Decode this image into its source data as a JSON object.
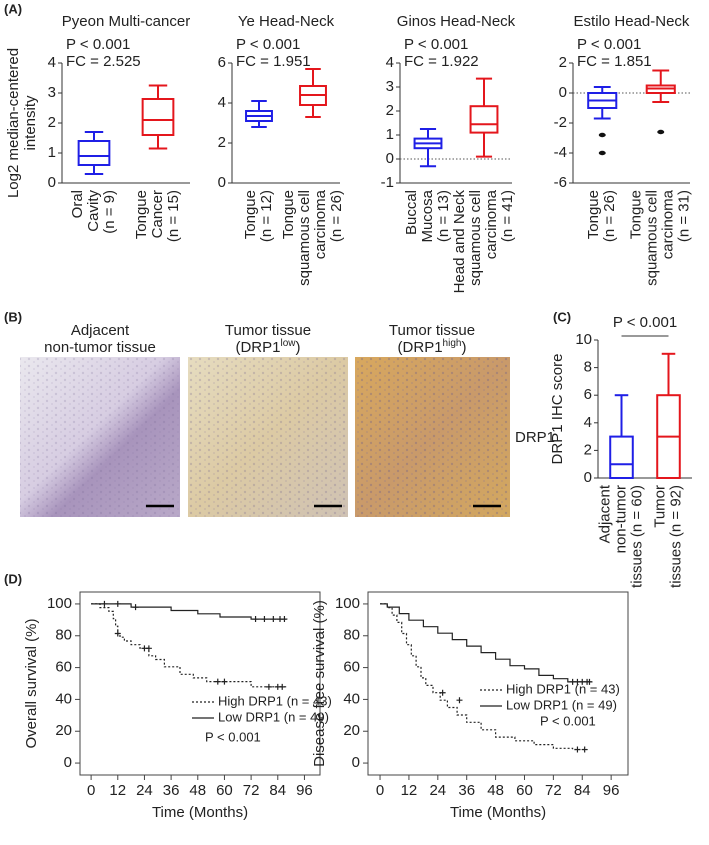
{
  "panel_labels": [
    "(A)",
    "(B)",
    "(C)",
    "(D)"
  ],
  "ihc": {
    "captions": [
      [
        "Adjacent",
        "non-tumor tissue"
      ],
      [
        "Tumor tissue",
        "(DRP1",
        "low",
        ")"
      ],
      [
        "Tumor tissue",
        "(DRP1",
        "high",
        ")"
      ]
    ],
    "marker": "DRP1"
  },
  "chart_data": [
    {
      "type": "box",
      "title": "Pyeon Multi-cancer",
      "annotations": [
        "P < 0.001",
        "FC = 2.525"
      ],
      "ylabel": [
        "Log2 median-centered",
        "intensity"
      ],
      "categories": [
        [
          "Oral",
          "Cavity",
          "(n = 9)"
        ],
        [
          "Tongue",
          "Cancer",
          "(n = 15)"
        ]
      ],
      "colors": [
        "#1f1fe6",
        "#e4161c"
      ],
      "boxes": [
        {
          "min": 0.3,
          "q1": 0.6,
          "median": 0.9,
          "q3": 1.4,
          "max": 1.7,
          "outliers": []
        },
        {
          "min": 1.15,
          "q1": 1.6,
          "median": 2.1,
          "q3": 2.8,
          "max": 3.25,
          "outliers": []
        }
      ],
      "ylim": [
        0,
        4
      ],
      "yticks": [
        0,
        1,
        2,
        3,
        4
      ]
    },
    {
      "type": "box",
      "title": "Ye Head-Neck",
      "annotations": [
        "P < 0.001",
        "FC = 1.951"
      ],
      "categories": [
        [
          "Tongue",
          "(n = 12)"
        ],
        [
          "Tongue",
          "squamous cell",
          "carcinoma",
          "(n = 26)"
        ]
      ],
      "colors": [
        "#1f1fe6",
        "#e4161c"
      ],
      "boxes": [
        {
          "min": 2.8,
          "q1": 3.1,
          "median": 3.35,
          "q3": 3.6,
          "max": 4.1,
          "outliers": []
        },
        {
          "min": 3.3,
          "q1": 3.9,
          "median": 4.4,
          "q3": 4.85,
          "max": 5.7,
          "outliers": []
        }
      ],
      "ylim": [
        0,
        6
      ],
      "yticks": [
        0,
        2,
        4,
        6
      ]
    },
    {
      "type": "box",
      "title": "Ginos Head-Neck",
      "annotations": [
        "P < 0.001",
        "FC = 1.922"
      ],
      "categories": [
        [
          "Buccal",
          "Mucosa",
          "(n = 13)"
        ],
        [
          "Head and Neck",
          "squamous cell",
          "carcinoma",
          "(n = 41)"
        ]
      ],
      "colors": [
        "#1f1fe6",
        "#e4161c"
      ],
      "boxes": [
        {
          "min": -0.3,
          "q1": 0.45,
          "median": 0.65,
          "q3": 0.85,
          "max": 1.25,
          "outliers": []
        },
        {
          "min": 0.1,
          "q1": 1.1,
          "median": 1.45,
          "q3": 2.2,
          "max": 3.35,
          "outliers": []
        }
      ],
      "reference_line": 0,
      "ylim": [
        -1,
        4
      ],
      "yticks": [
        -1,
        0,
        1,
        2,
        3,
        4
      ]
    },
    {
      "type": "box",
      "title": "Estilo Head-Neck",
      "annotations": [
        "P < 0.001",
        "FC = 1.851"
      ],
      "categories": [
        [
          "Tongue",
          "(n = 26)"
        ],
        [
          "Tongue",
          "squamous cell",
          "carcinoma",
          "(n = 31)"
        ]
      ],
      "colors": [
        "#1f1fe6",
        "#e4161c"
      ],
      "boxes": [
        {
          "min": -1.7,
          "q1": -1.0,
          "median": -0.5,
          "q3": 0.0,
          "max": 0.4,
          "outliers": [
            -2.8,
            -4.0
          ]
        },
        {
          "min": -0.6,
          "q1": 0.0,
          "median": 0.3,
          "q3": 0.5,
          "max": 1.5,
          "outliers": [
            -2.6
          ]
        }
      ],
      "reference_line": 0,
      "ylim": [
        -6,
        2
      ],
      "yticks": [
        -6,
        -4,
        -2,
        0,
        2
      ]
    },
    {
      "type": "box",
      "annotations": [
        "P < 0.001"
      ],
      "ylabel": [
        "DRP1 IHC score"
      ],
      "categories": [
        [
          "Adjacent",
          "non-tumor",
          "tissues (n = 60)"
        ],
        [
          "Tumor",
          "tissues (n = 92)"
        ]
      ],
      "colors": [
        "#1f1fe6",
        "#e4161c"
      ],
      "boxes": [
        {
          "min": 0,
          "q1": 0,
          "median": 1,
          "q3": 3,
          "max": 6,
          "outliers": []
        },
        {
          "min": 0,
          "q1": 0,
          "median": 3,
          "q3": 6,
          "max": 9,
          "outliers": []
        }
      ],
      "ylim": [
        0,
        10
      ],
      "yticks": [
        0,
        2,
        4,
        6,
        8,
        10
      ]
    },
    {
      "type": "km",
      "ylabel": "Overall survival (%)",
      "xlabel": "Time (Months)",
      "annotations": [
        "P < 0.001"
      ],
      "xlim": [
        -5,
        103
      ],
      "ylim": [
        -7.5,
        107.5
      ],
      "xticks": [
        0,
        12,
        24,
        36,
        48,
        60,
        72,
        84,
        96
      ],
      "yticks": [
        0,
        20,
        40,
        60,
        80,
        100
      ],
      "series": [
        {
          "name": "High DRP1 (n = 43)",
          "color": "#222222",
          "dash": "dotted",
          "x": [
            0,
            4,
            4,
            8,
            8,
            10,
            10,
            11,
            11,
            12,
            12,
            13,
            13,
            15,
            15,
            18,
            18,
            22,
            22,
            26,
            26,
            29,
            29,
            33,
            33,
            40,
            40,
            46,
            46,
            52,
            52,
            72,
            72,
            88
          ],
          "values": [
            100,
            100,
            97.7,
            97.7,
            95.3,
            95.3,
            90.7,
            90.7,
            86,
            86,
            81.4,
            81.4,
            79.1,
            79.1,
            76.7,
            76.7,
            74.4,
            74.4,
            72.1,
            72.1,
            67.4,
            67.4,
            65.1,
            65.1,
            60.5,
            60.5,
            55.8,
            55.8,
            53.5,
            53.5,
            51.2,
            51.2,
            47.9,
            47.9
          ],
          "censored_x": [
            12,
            24,
            26,
            57,
            60,
            80,
            84,
            86
          ],
          "censored_y": [
            81.4,
            72.1,
            72.1,
            51.2,
            51.2,
            47.9,
            47.9,
            47.9
          ]
        },
        {
          "name": "Low DRP1 (n = 49)",
          "color": "#222222",
          "dash": "solid",
          "x": [
            0,
            18,
            18,
            36,
            36,
            48,
            48,
            58,
            58,
            72,
            72,
            88
          ],
          "values": [
            100,
            100,
            98,
            98,
            95.9,
            95.9,
            93.8,
            93.8,
            91.8,
            91.8,
            90.5,
            90.5
          ],
          "censored_x": [
            6,
            12,
            20,
            74,
            78,
            82,
            85,
            87
          ],
          "censored_y": [
            100,
            100,
            98,
            90.5,
            90.5,
            90.5,
            90.5,
            90.5
          ]
        }
      ]
    },
    {
      "type": "km",
      "ylabel": "Disease free survival (%)",
      "xlabel": "Time (Months)",
      "annotations": [
        "P < 0.001"
      ],
      "xlim": [
        -5,
        103
      ],
      "ylim": [
        -7.5,
        107.5
      ],
      "xticks": [
        0,
        12,
        24,
        36,
        48,
        60,
        72,
        84,
        96
      ],
      "yticks": [
        0,
        20,
        40,
        60,
        80,
        100
      ],
      "series": [
        {
          "name": "High DRP1 (n = 43)",
          "color": "#222222",
          "dash": "dotted",
          "x": [
            0,
            3,
            3,
            5,
            5,
            7,
            7,
            9,
            9,
            11,
            11,
            13,
            13,
            15,
            15,
            17,
            17,
            19,
            19,
            22,
            22,
            25,
            25,
            28,
            28,
            32,
            32,
            36,
            36,
            42,
            42,
            48,
            48,
            56,
            56,
            64,
            64,
            72,
            72,
            80,
            80,
            86
          ],
          "values": [
            100,
            100,
            97.7,
            97.7,
            93,
            93,
            88.4,
            88.4,
            81.4,
            81.4,
            74.4,
            74.4,
            67.4,
            67.4,
            60.5,
            60.5,
            53.5,
            53.5,
            48.8,
            48.8,
            44.2,
            44.2,
            39.5,
            39.5,
            34.9,
            34.9,
            30.2,
            30.2,
            25.6,
            25.6,
            20.9,
            20.9,
            16.3,
            16.3,
            14,
            14,
            11.6,
            11.6,
            9.3,
            9.3,
            8.5,
            8.5
          ],
          "censored_x": [
            26,
            33,
            82,
            85
          ],
          "censored_y": [
            44.2,
            39.5,
            8.5,
            8.5
          ]
        },
        {
          "name": "Low DRP1 (n = 49)",
          "color": "#222222",
          "dash": "solid",
          "x": [
            0,
            3,
            3,
            8,
            8,
            12,
            12,
            18,
            18,
            24,
            24,
            30,
            30,
            36,
            36,
            42,
            42,
            48,
            48,
            54,
            54,
            60,
            60,
            66,
            66,
            72,
            72,
            78,
            78,
            88
          ],
          "values": [
            100,
            100,
            98,
            98,
            93.9,
            93.9,
            89.8,
            89.8,
            85.7,
            85.7,
            81.6,
            81.6,
            77.6,
            77.6,
            73.5,
            73.5,
            69.4,
            69.4,
            65.3,
            65.3,
            61.2,
            61.2,
            59.2,
            59.2,
            55.1,
            55.1,
            53,
            53,
            51,
            51
          ],
          "censored_x": [
            80,
            82,
            84,
            86,
            87
          ],
          "censored_y": [
            51,
            51,
            51,
            51,
            51
          ]
        }
      ]
    }
  ]
}
